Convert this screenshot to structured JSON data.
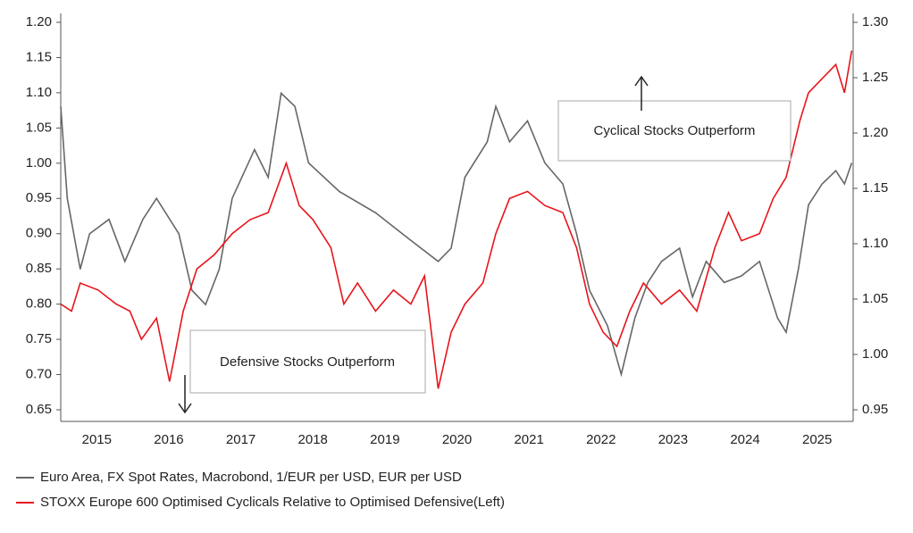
{
  "chart_data": {
    "type": "line",
    "legend": "bottom",
    "xlim": [
      2015,
      2026
    ],
    "xticks": [
      {
        "value": 2015.5,
        "label": "2015"
      },
      {
        "value": 2016.5,
        "label": "2016"
      },
      {
        "value": 2017.5,
        "label": "2017"
      },
      {
        "value": 2018.5,
        "label": "2018"
      },
      {
        "value": 2019.5,
        "label": "2019"
      },
      {
        "value": 2020.5,
        "label": "2020"
      },
      {
        "value": 2021.5,
        "label": "2021"
      },
      {
        "value": 2022.5,
        "label": "2022"
      },
      {
        "value": 2023.5,
        "label": "2023"
      },
      {
        "value": 2024.5,
        "label": "2024"
      },
      {
        "value": 2025.5,
        "label": "2025"
      }
    ],
    "ylim": [
      0.65,
      1.2
    ],
    "yticks": [
      {
        "value": 0.65,
        "label": "0.65"
      },
      {
        "value": 0.7,
        "label": "0.70"
      },
      {
        "value": 0.75,
        "label": "0.75"
      },
      {
        "value": 0.8,
        "label": "0.80"
      },
      {
        "value": 0.85,
        "label": "0.85"
      },
      {
        "value": 0.9,
        "label": "0.90"
      },
      {
        "value": 0.95,
        "label": "0.95"
      },
      {
        "value": 1.0,
        "label": "1.00"
      },
      {
        "value": 1.05,
        "label": "1.05"
      },
      {
        "value": 1.1,
        "label": "1.10"
      },
      {
        "value": 1.15,
        "label": "1.15"
      },
      {
        "value": 1.2,
        "label": "1.20"
      }
    ],
    "y2lim": [
      0.95,
      1.3
    ],
    "y2ticks": [
      {
        "value": 0.95,
        "label": "0.95"
      },
      {
        "value": 1.0,
        "label": "1.00"
      },
      {
        "value": 1.05,
        "label": "1.05"
      },
      {
        "value": 1.1,
        "label": "1.10"
      },
      {
        "value": 1.15,
        "label": "1.15"
      },
      {
        "value": 1.2,
        "label": "1.20"
      },
      {
        "value": 1.25,
        "label": "1.25"
      },
      {
        "value": 1.3,
        "label": "1.30"
      }
    ],
    "annotations": [
      "Defensive Stocks Outperform",
      "Cyclical Stocks Outperform"
    ],
    "series": [
      {
        "name": "Euro Area, FX Spot Rates, Macrobond, 1/EUR per USD, EUR per USD",
        "color": "#666666",
        "axis": "y2",
        "x": [
          2015.0,
          2015.09,
          2015.27,
          2015.4,
          2015.67,
          2015.89,
          2016.14,
          2016.33,
          2016.64,
          2016.82,
          2017.01,
          2017.2,
          2017.38,
          2017.69,
          2017.88,
          2018.06,
          2018.25,
          2018.44,
          2018.87,
          2019.37,
          2019.86,
          2020.24,
          2020.42,
          2020.61,
          2020.92,
          2021.04,
          2021.23,
          2021.48,
          2021.72,
          2021.97,
          2022.16,
          2022.34,
          2022.59,
          2022.78,
          2022.97,
          2023.15,
          2023.34,
          2023.59,
          2023.77,
          2023.96,
          2024.21,
          2024.45,
          2024.7,
          2024.95,
          2025.07,
          2025.24,
          2025.38,
          2025.57,
          2025.76,
          2025.88,
          2025.98
        ],
        "values": [
          1.224,
          1.141,
          1.077,
          1.109,
          1.122,
          1.084,
          1.122,
          1.141,
          1.109,
          1.058,
          1.045,
          1.077,
          1.141,
          1.185,
          1.16,
          1.236,
          1.224,
          1.173,
          1.147,
          1.128,
          1.103,
          1.084,
          1.096,
          1.16,
          1.192,
          1.224,
          1.192,
          1.211,
          1.173,
          1.154,
          1.109,
          1.058,
          1.026,
          0.982,
          1.033,
          1.065,
          1.084,
          1.096,
          1.052,
          1.084,
          1.065,
          1.071,
          1.084,
          1.033,
          1.02,
          1.077,
          1.135,
          1.154,
          1.166,
          1.154,
          1.173
        ]
      },
      {
        "name": "STOXX Europe 600 Optimised Cyclicals Relative to Optimised Defensive(Left)",
        "color": "#e8141b",
        "axis": "y",
        "x": [
          2015.0,
          2015.15,
          2015.27,
          2015.52,
          2015.77,
          2015.96,
          2016.12,
          2016.33,
          2016.51,
          2016.7,
          2016.89,
          2017.13,
          2017.38,
          2017.63,
          2017.88,
          2018.13,
          2018.31,
          2018.5,
          2018.75,
          2018.93,
          2019.12,
          2019.37,
          2019.62,
          2019.86,
          2020.05,
          2020.24,
          2020.42,
          2020.61,
          2020.86,
          2021.04,
          2021.23,
          2021.48,
          2021.72,
          2021.97,
          2022.16,
          2022.34,
          2022.53,
          2022.72,
          2022.9,
          2023.09,
          2023.34,
          2023.59,
          2023.83,
          2024.08,
          2024.27,
          2024.45,
          2024.7,
          2024.89,
          2025.07,
          2025.26,
          2025.38,
          2025.57,
          2025.76,
          2025.88,
          2025.98
        ],
        "values": [
          0.8,
          0.79,
          0.83,
          0.82,
          0.8,
          0.79,
          0.75,
          0.78,
          0.69,
          0.79,
          0.85,
          0.87,
          0.9,
          0.92,
          0.93,
          1.0,
          0.94,
          0.92,
          0.88,
          0.8,
          0.83,
          0.79,
          0.82,
          0.8,
          0.84,
          0.68,
          0.76,
          0.8,
          0.83,
          0.9,
          0.95,
          0.96,
          0.94,
          0.93,
          0.88,
          0.8,
          0.76,
          0.74,
          0.79,
          0.83,
          0.8,
          0.82,
          0.79,
          0.88,
          0.93,
          0.89,
          0.9,
          0.95,
          0.98,
          1.06,
          1.1,
          1.12,
          1.14,
          1.1,
          1.16
        ]
      }
    ]
  }
}
